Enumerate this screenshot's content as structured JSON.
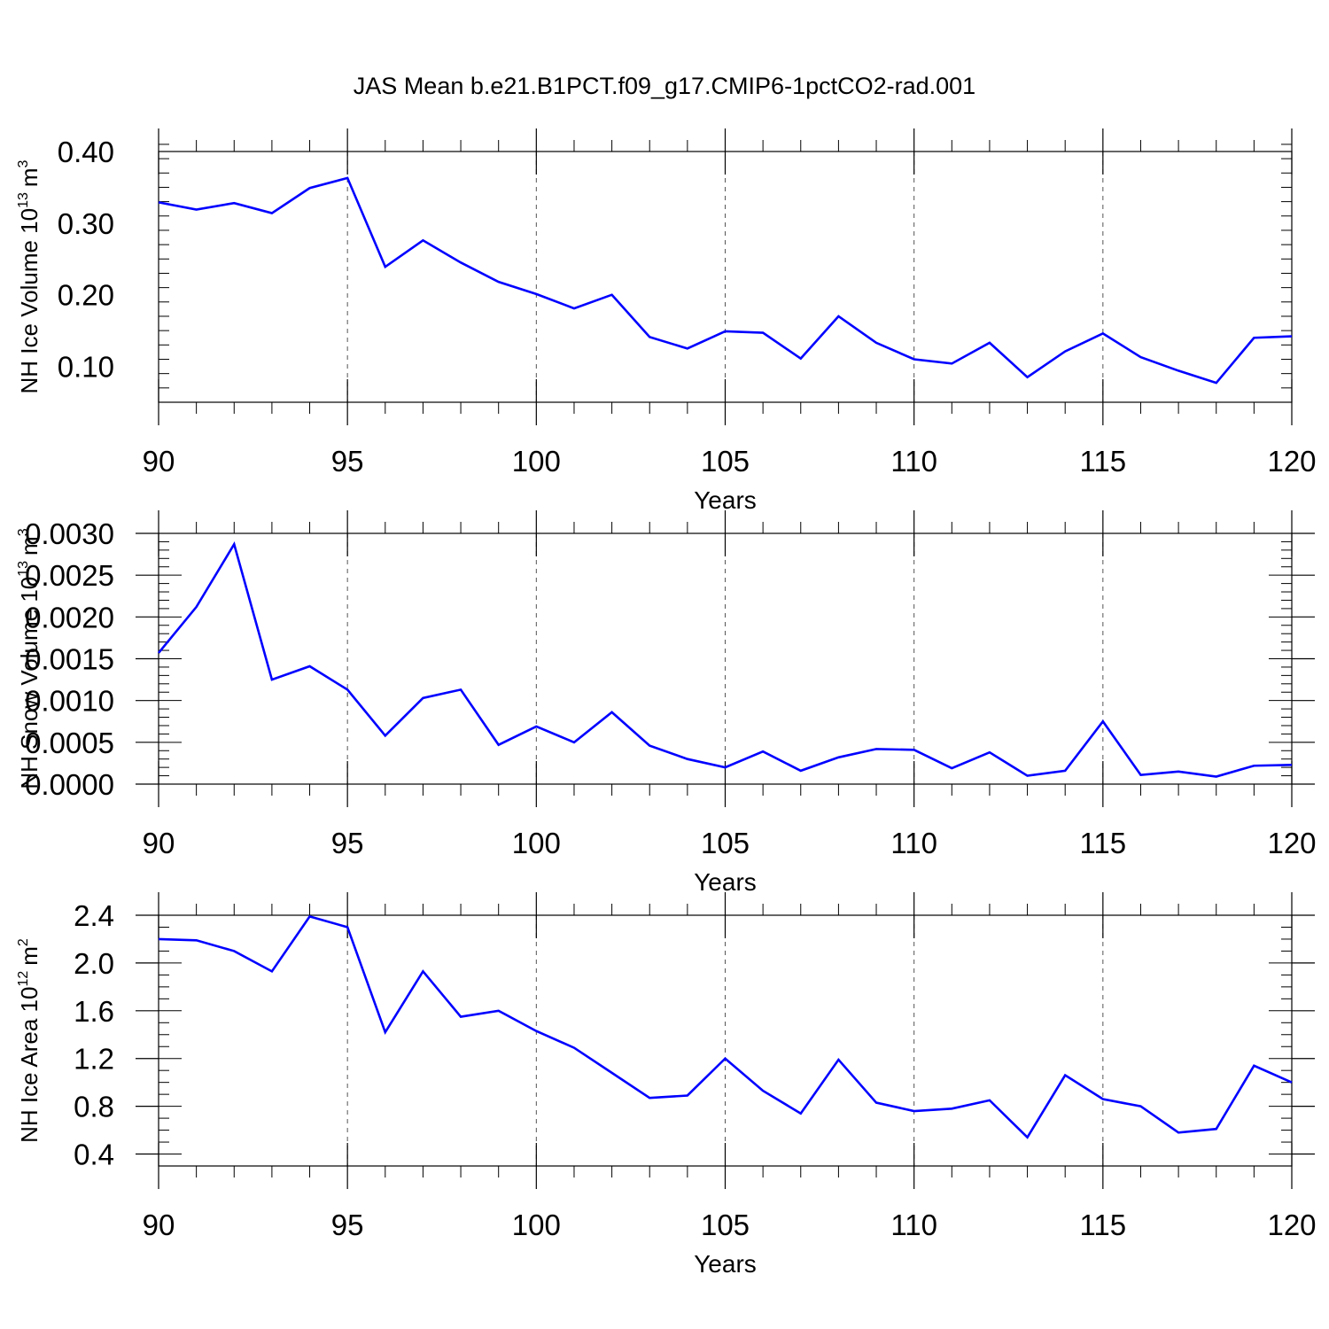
{
  "figure": {
    "title": "JAS Mean b.e21.B1PCT.f09_g17.CMIP6-1pctCO2-rad.001",
    "line_color": "#0000ff",
    "grid_color": "#555555"
  },
  "chart_data": [
    {
      "type": "line",
      "title": "",
      "xlabel": "Years",
      "ylabel": "NH Ice Volume 10",
      "ylabel_exponent": "13",
      "ylabel_unit": "m",
      "ylabel_unit_exponent": "3",
      "xlim": [
        90,
        120
      ],
      "ylim": [
        0.05,
        0.4
      ],
      "xticks": [
        90,
        95,
        100,
        105,
        110,
        115,
        120
      ],
      "xtick_labels": [
        "90",
        "95",
        "100",
        "105",
        "110",
        "115",
        "120"
      ],
      "yticks": [
        0.1,
        0.2,
        0.3,
        0.4
      ],
      "ytick_labels": [
        "0.10",
        "0.20",
        "0.30",
        "0.40"
      ],
      "y_minor_step": 0.02,
      "grid": "vertical dashed at major x ticks",
      "x": [
        90,
        91,
        92,
        93,
        94,
        95,
        96,
        97,
        98,
        99,
        100,
        101,
        102,
        103,
        104,
        105,
        106,
        107,
        108,
        109,
        110,
        111,
        112,
        113,
        114,
        115,
        116,
        117,
        118,
        119,
        120
      ],
      "series": [
        {
          "values": [
            0.329,
            0.319,
            0.328,
            0.314,
            0.349,
            0.363,
            0.239,
            0.276,
            0.245,
            0.218,
            0.201,
            0.181,
            0.2,
            0.141,
            0.125,
            0.149,
            0.147,
            0.111,
            0.17,
            0.133,
            0.11,
            0.104,
            0.133,
            0.085,
            0.121,
            0.146,
            0.113,
            0.094,
            0.077,
            0.14,
            0.142
          ]
        }
      ]
    },
    {
      "type": "line",
      "title": "",
      "xlabel": "Years",
      "ylabel": "NH Snow Volume 10",
      "ylabel_exponent": "13",
      "ylabel_unit": "m",
      "ylabel_unit_exponent": "3",
      "xlim": [
        90,
        120
      ],
      "ylim": [
        0.0,
        0.003
      ],
      "xticks": [
        90,
        95,
        100,
        105,
        110,
        115,
        120
      ],
      "xtick_labels": [
        "90",
        "95",
        "100",
        "105",
        "110",
        "115",
        "120"
      ],
      "yticks": [
        0.0,
        0.0005,
        0.001,
        0.0015,
        0.002,
        0.0025,
        0.003
      ],
      "ytick_labels": [
        "0.0000",
        "0.0005",
        "0.0010",
        "0.0015",
        "0.0020",
        "0.0025",
        "0.0030"
      ],
      "y_minor_step": 0.0001,
      "grid": "vertical dashed at major x ticks",
      "x": [
        90,
        91,
        92,
        93,
        94,
        95,
        96,
        97,
        98,
        99,
        100,
        101,
        102,
        103,
        104,
        105,
        106,
        107,
        108,
        109,
        110,
        111,
        112,
        113,
        114,
        115,
        116,
        117,
        118,
        119,
        120
      ],
      "series": [
        {
          "values": [
            0.00157,
            0.00212,
            0.00287,
            0.00125,
            0.00141,
            0.00113,
            0.00058,
            0.00103,
            0.00113,
            0.00047,
            0.00069,
            0.0005,
            0.00086,
            0.00046,
            0.0003,
            0.0002,
            0.00039,
            0.00016,
            0.00032,
            0.00042,
            0.00041,
            0.00019,
            0.00038,
            0.0001,
            0.00016,
            0.00075,
            0.00011,
            0.00015,
            9e-05,
            0.00022,
            0.00023
          ]
        }
      ]
    },
    {
      "type": "line",
      "title": "",
      "xlabel": "Years",
      "ylabel": "NH Ice Area 10",
      "ylabel_exponent": "12",
      "ylabel_unit": "m",
      "ylabel_unit_exponent": "2",
      "xlim": [
        90,
        120
      ],
      "ylim": [
        0.3,
        2.4
      ],
      "xticks": [
        90,
        95,
        100,
        105,
        110,
        115,
        120
      ],
      "xtick_labels": [
        "90",
        "95",
        "100",
        "105",
        "110",
        "115",
        "120"
      ],
      "yticks": [
        0.4,
        0.8,
        1.2,
        1.6,
        2.0,
        2.4
      ],
      "ytick_labels": [
        "0.4",
        "0.8",
        "1.2",
        "1.6",
        "2.0",
        "2.4"
      ],
      "y_minor_step": 0.1,
      "grid": "vertical dashed at major x ticks",
      "x": [
        90,
        91,
        92,
        93,
        94,
        95,
        96,
        97,
        98,
        99,
        100,
        101,
        102,
        103,
        104,
        105,
        106,
        107,
        108,
        109,
        110,
        111,
        112,
        113,
        114,
        115,
        116,
        117,
        118,
        119,
        120
      ],
      "series": [
        {
          "values": [
            2.2,
            2.19,
            2.1,
            1.93,
            2.39,
            2.3,
            1.42,
            1.93,
            1.55,
            1.6,
            1.43,
            1.29,
            1.08,
            0.87,
            0.89,
            1.2,
            0.93,
            0.74,
            1.19,
            0.83,
            0.76,
            0.78,
            0.85,
            0.54,
            1.06,
            0.86,
            0.8,
            0.58,
            0.61,
            1.14,
            1.0
          ]
        }
      ]
    }
  ]
}
